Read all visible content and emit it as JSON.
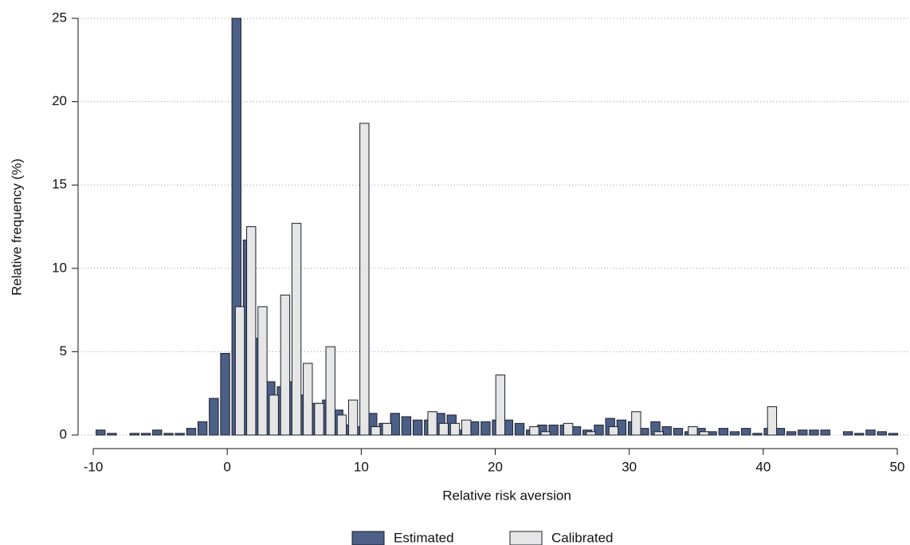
{
  "chart_data": {
    "type": "histogram",
    "xlabel": "Relative risk aversion",
    "ylabel": "Relative frequency (%)",
    "bins": [
      -10,
      -9.155,
      -8.31,
      -7.465,
      -6.62,
      -5.775,
      -4.93,
      -4.085,
      -3.24,
      -2.395,
      -1.55,
      -0.705,
      0.14,
      0.985,
      1.83,
      2.675,
      3.52,
      4.365,
      5.21,
      6.055,
      6.9,
      7.745,
      8.59,
      9.435,
      10.28,
      11.125,
      11.97,
      12.815,
      13.66,
      14.505,
      15.35,
      16.195,
      17.04,
      17.885,
      18.73,
      19.575,
      20.42,
      21.265,
      22.11,
      22.955,
      23.8,
      24.645,
      25.49,
      26.335,
      27.18,
      28.025,
      28.87,
      29.715,
      30.56,
      31.405,
      32.25,
      33.095,
      33.94,
      34.785,
      35.63,
      36.475,
      37.32,
      38.165,
      39.01,
      39.855,
      40.7,
      41.545,
      42.39,
      43.235,
      44.08,
      44.925,
      45.77,
      46.615,
      47.46,
      48.305,
      49.15,
      49.995
    ],
    "series": [
      {
        "name": "Estimated",
        "color": "#4c5f87",
        "values": [
          0.3,
          0.1,
          0,
          0.1,
          0.1,
          0.3,
          0.1,
          0.1,
          0.4,
          0.8,
          2.2,
          4.9,
          25,
          11.7,
          5.8,
          3.2,
          2.9,
          3.2,
          2.4,
          1.9,
          2.1,
          1.5,
          0.6,
          0.5,
          1.3,
          0.7,
          1.3,
          1.1,
          0.9,
          0.9,
          1.3,
          1.2,
          0.3,
          0.8,
          0.8,
          0.9,
          0.9,
          0.7,
          0.3,
          0.6,
          0.6,
          0.6,
          0.5,
          0.3,
          0.6,
          1.0,
          0.9,
          0.8,
          0.4,
          0.8,
          0.5,
          0.4,
          0.2,
          0.4,
          0.2,
          0.4,
          0.2,
          0.4,
          0.1,
          0.4,
          0.4,
          0.2,
          0.3,
          0.3,
          0.3,
          0,
          0.2,
          0.1,
          0.3,
          0.2,
          0.1
        ]
      },
      {
        "name": "Calibrated",
        "color": "#e6e6e6",
        "values": [
          0,
          0,
          0,
          0,
          0,
          0,
          0,
          0,
          0,
          0,
          0,
          0,
          7.7,
          12.5,
          7.7,
          2.4,
          8.4,
          12.7,
          4.3,
          1.9,
          5.3,
          1.2,
          2.1,
          18.7,
          0.5,
          0.7,
          0,
          0,
          0,
          1.4,
          0.7,
          0.7,
          0.9,
          0,
          0,
          3.6,
          0,
          0,
          0.5,
          0.2,
          0,
          0.7,
          0,
          0.2,
          0,
          0.5,
          0,
          1.4,
          0,
          0.2,
          0,
          0,
          0.5,
          0.2,
          0,
          0,
          0,
          0,
          0,
          1.7,
          0,
          0,
          0,
          0,
          0,
          0,
          0,
          0,
          0,
          0,
          0
        ]
      }
    ],
    "xlim": [
      -10,
      50
    ],
    "xticks": [
      -10,
      0,
      10,
      20,
      30,
      40,
      50
    ],
    "ylim": [
      0,
      25
    ],
    "yticks": [
      0,
      5,
      10,
      15,
      20,
      25
    ],
    "grid": true,
    "legend": "bottom"
  }
}
